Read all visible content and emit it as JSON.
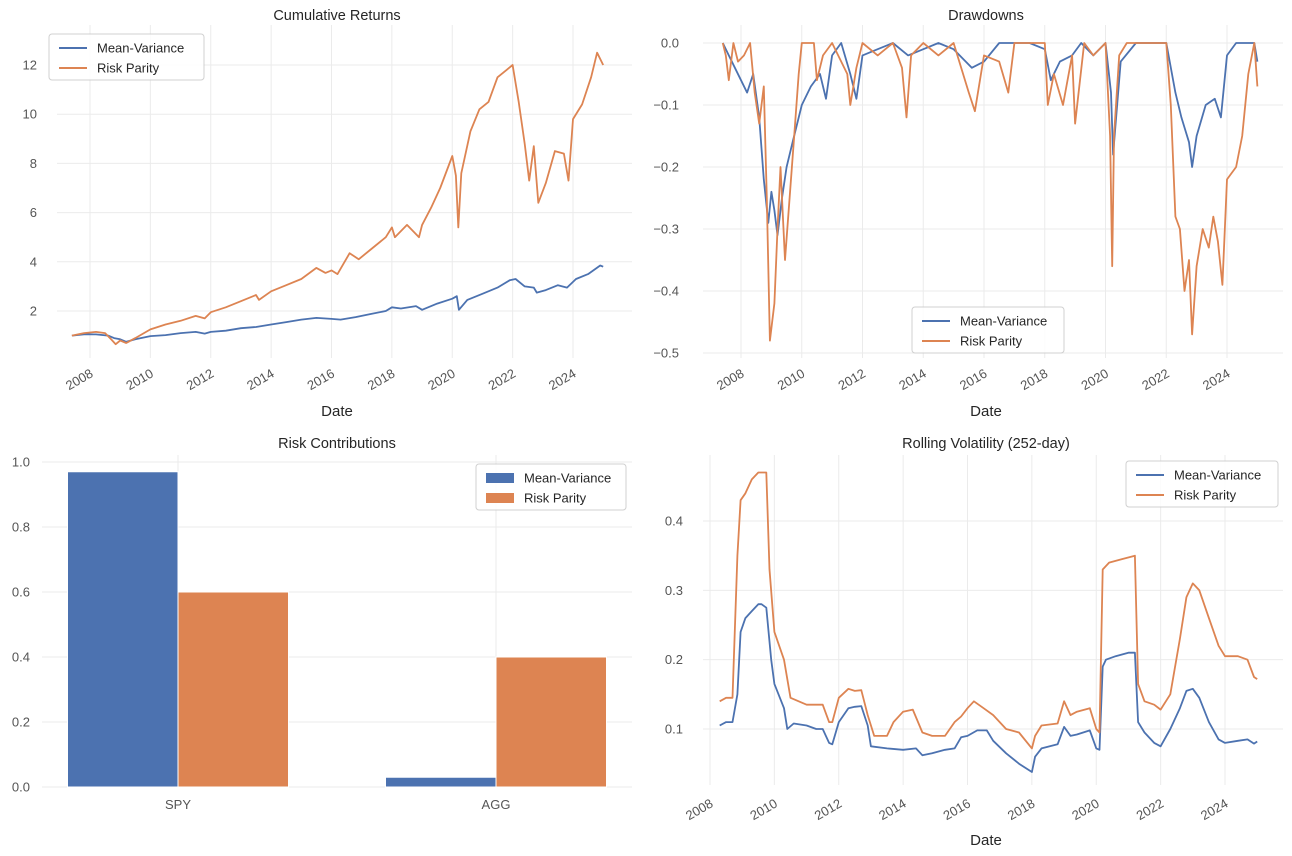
{
  "colors": {
    "mean_variance": "#4c72b0",
    "risk_parity": "#dd8452"
  },
  "chart_data": [
    {
      "id": "cumulative",
      "type": "line",
      "title": "Cumulative Returns",
      "xlabel": "Date",
      "ylabel": "",
      "xticks": [
        "2008",
        "2010",
        "2012",
        "2014",
        "2016",
        "2018",
        "2020",
        "2022",
        "2024"
      ],
      "yticks": [
        "2",
        "4",
        "6",
        "8",
        "10",
        "12"
      ],
      "ylim": [
        0,
        13.5
      ],
      "xlim": [
        2006.9,
        2025.6
      ],
      "grid": true,
      "legend": {
        "position": "top-left",
        "entries": [
          "Mean-Variance",
          "Risk Parity"
        ]
      },
      "series": [
        {
          "name": "Mean-Variance",
          "x": [
            2007.4,
            2007.8,
            2008.2,
            2008.6,
            2008.8,
            2009.0,
            2009.2,
            2009.5,
            2010.0,
            2010.5,
            2011.0,
            2011.5,
            2011.8,
            2012.0,
            2012.5,
            2013.0,
            2013.5,
            2014.0,
            2014.5,
            2015.0,
            2015.5,
            2016.0,
            2016.3,
            2016.8,
            2017.3,
            2017.8,
            2018.0,
            2018.3,
            2018.8,
            2019.0,
            2019.5,
            2020.0,
            2020.15,
            2020.22,
            2020.5,
            2021.0,
            2021.5,
            2021.9,
            2022.1,
            2022.4,
            2022.7,
            2022.8,
            2023.1,
            2023.5,
            2023.8,
            2024.1,
            2024.5,
            2024.9,
            2025.0
          ],
          "y": [
            1.0,
            1.05,
            1.05,
            1.0,
            0.9,
            0.85,
            0.75,
            0.85,
            0.98,
            1.02,
            1.1,
            1.15,
            1.08,
            1.15,
            1.2,
            1.3,
            1.35,
            1.45,
            1.55,
            1.65,
            1.72,
            1.68,
            1.65,
            1.75,
            1.88,
            2.0,
            2.15,
            2.1,
            2.2,
            2.05,
            2.3,
            2.5,
            2.6,
            2.05,
            2.45,
            2.7,
            2.95,
            3.25,
            3.3,
            3.0,
            2.95,
            2.75,
            2.85,
            3.05,
            2.95,
            3.3,
            3.5,
            3.85,
            3.8
          ]
        },
        {
          "name": "Risk Parity",
          "x": [
            2007.4,
            2007.8,
            2008.2,
            2008.5,
            2008.7,
            2008.85,
            2009.0,
            2009.2,
            2009.5,
            2010.0,
            2010.5,
            2011.0,
            2011.5,
            2011.8,
            2012.0,
            2012.5,
            2013.0,
            2013.5,
            2013.6,
            2014.0,
            2014.5,
            2015.0,
            2015.5,
            2015.8,
            2016.0,
            2016.2,
            2016.6,
            2016.9,
            2017.3,
            2017.8,
            2018.0,
            2018.1,
            2018.5,
            2018.9,
            2019.0,
            2019.3,
            2019.6,
            2020.0,
            2020.12,
            2020.2,
            2020.3,
            2020.6,
            2020.9,
            2021.2,
            2021.5,
            2021.8,
            2022.0,
            2022.2,
            2022.4,
            2022.55,
            2022.7,
            2022.85,
            2023.1,
            2023.4,
            2023.7,
            2023.85,
            2024.0,
            2024.3,
            2024.6,
            2024.8,
            2025.0
          ],
          "y": [
            1.0,
            1.1,
            1.15,
            1.1,
            0.85,
            0.65,
            0.8,
            0.7,
            0.9,
            1.25,
            1.45,
            1.6,
            1.8,
            1.7,
            1.95,
            2.15,
            2.4,
            2.65,
            2.45,
            2.8,
            3.05,
            3.3,
            3.75,
            3.55,
            3.65,
            3.5,
            4.35,
            4.1,
            4.5,
            5.0,
            5.4,
            5.0,
            5.5,
            5.0,
            5.5,
            6.2,
            7.0,
            8.3,
            7.5,
            5.4,
            7.6,
            9.3,
            10.2,
            10.5,
            11.5,
            11.8,
            12.0,
            10.5,
            8.8,
            7.3,
            8.7,
            6.4,
            7.2,
            8.5,
            8.4,
            7.3,
            9.8,
            10.4,
            11.5,
            12.5,
            12.0
          ]
        }
      ]
    },
    {
      "id": "drawdowns",
      "type": "line",
      "title": "Drawdowns",
      "xlabel": "Date",
      "ylabel": "",
      "xticks": [
        "2008",
        "2010",
        "2012",
        "2014",
        "2016",
        "2018",
        "2020",
        "2022",
        "2024"
      ],
      "yticks": [
        "0.0",
        "−0.1",
        "−0.2",
        "−0.3",
        "−0.4",
        "−0.5"
      ],
      "ylim": [
        -0.52,
        0.02
      ],
      "xlim": [
        2006.9,
        2025.6
      ],
      "grid": true,
      "legend": {
        "position": "bottom-center",
        "entries": [
          "Mean-Variance",
          "Risk Parity"
        ]
      },
      "series": [
        {
          "name": "Mean-Variance",
          "x": [
            2007.4,
            2007.6,
            2007.8,
            2008.0,
            2008.2,
            2008.4,
            2008.6,
            2008.75,
            2008.9,
            2009.0,
            2009.1,
            2009.2,
            2009.35,
            2009.5,
            2009.7,
            2010.0,
            2010.3,
            2010.6,
            2010.8,
            2011.0,
            2011.3,
            2011.6,
            2011.8,
            2012.0,
            2012.5,
            2013.0,
            2013.5,
            2014.0,
            2014.5,
            2015.0,
            2015.6,
            2016.0,
            2016.5,
            2017.0,
            2017.5,
            2018.0,
            2018.2,
            2018.5,
            2018.9,
            2019.2,
            2019.6,
            2020.0,
            2020.18,
            2020.25,
            2020.5,
            2021.0,
            2021.5,
            2022.0,
            2022.3,
            2022.5,
            2022.75,
            2022.85,
            2023.0,
            2023.3,
            2023.6,
            2023.8,
            2024.0,
            2024.3,
            2024.6,
            2024.9,
            2025.0
          ],
          "y": [
            0.0,
            -0.02,
            -0.04,
            -0.06,
            -0.08,
            -0.05,
            -0.12,
            -0.22,
            -0.29,
            -0.24,
            -0.27,
            -0.31,
            -0.25,
            -0.2,
            -0.16,
            -0.1,
            -0.07,
            -0.05,
            -0.09,
            -0.02,
            0.0,
            -0.05,
            -0.09,
            -0.02,
            -0.01,
            0.0,
            -0.02,
            -0.01,
            0.0,
            -0.01,
            -0.04,
            -0.03,
            0.0,
            0.0,
            0.0,
            -0.01,
            -0.06,
            -0.03,
            -0.02,
            0.0,
            -0.02,
            0.0,
            -0.08,
            -0.18,
            -0.03,
            0.0,
            0.0,
            0.0,
            -0.08,
            -0.12,
            -0.16,
            -0.2,
            -0.15,
            -0.1,
            -0.09,
            -0.12,
            -0.02,
            0.0,
            0.0,
            0.0,
            -0.03
          ]
        },
        {
          "name": "Risk Parity",
          "x": [
            2007.4,
            2007.5,
            2007.6,
            2007.75,
            2007.9,
            2008.1,
            2008.3,
            2008.45,
            2008.6,
            2008.75,
            2008.85,
            2008.95,
            2009.1,
            2009.2,
            2009.3,
            2009.45,
            2009.6,
            2009.75,
            2009.9,
            2010.0,
            2010.4,
            2010.5,
            2010.7,
            2011.0,
            2011.5,
            2011.6,
            2011.8,
            2012.0,
            2012.5,
            2013.0,
            2013.3,
            2013.45,
            2013.6,
            2014.0,
            2014.5,
            2015.0,
            2015.5,
            2015.7,
            2016.0,
            2016.5,
            2016.8,
            2017.0,
            2017.5,
            2018.0,
            2018.1,
            2018.3,
            2018.6,
            2018.9,
            2019.0,
            2019.3,
            2019.6,
            2020.0,
            2020.15,
            2020.22,
            2020.28,
            2020.45,
            2020.7,
            2021.0,
            2021.5,
            2022.0,
            2022.15,
            2022.3,
            2022.45,
            2022.6,
            2022.75,
            2022.85,
            2023.0,
            2023.2,
            2023.4,
            2023.55,
            2023.7,
            2023.85,
            2024.0,
            2024.3,
            2024.5,
            2024.7,
            2024.9,
            2025.0
          ],
          "y": [
            0.0,
            -0.02,
            -0.06,
            0.0,
            -0.03,
            -0.02,
            0.0,
            -0.08,
            -0.13,
            -0.07,
            -0.25,
            -0.48,
            -0.42,
            -0.3,
            -0.2,
            -0.35,
            -0.25,
            -0.15,
            -0.05,
            0.0,
            0.0,
            -0.06,
            -0.02,
            0.0,
            -0.05,
            -0.1,
            -0.04,
            0.0,
            -0.02,
            0.0,
            -0.04,
            -0.12,
            -0.02,
            0.0,
            -0.02,
            0.0,
            -0.08,
            -0.11,
            -0.02,
            -0.03,
            -0.08,
            0.0,
            0.0,
            0.0,
            -0.1,
            -0.05,
            -0.1,
            -0.02,
            -0.13,
            0.0,
            -0.02,
            0.0,
            -0.15,
            -0.36,
            -0.15,
            -0.02,
            0.0,
            0.0,
            0.0,
            0.0,
            -0.1,
            -0.28,
            -0.3,
            -0.4,
            -0.35,
            -0.47,
            -0.36,
            -0.3,
            -0.33,
            -0.28,
            -0.32,
            -0.39,
            -0.22,
            -0.2,
            -0.15,
            -0.05,
            0.0,
            -0.07
          ]
        }
      ]
    },
    {
      "id": "risk_contributions",
      "type": "bar",
      "title": "Risk Contributions",
      "xlabel": "",
      "ylabel": "",
      "categories": [
        "SPY",
        "AGG"
      ],
      "yticks": [
        "0.0",
        "0.2",
        "0.4",
        "0.6",
        "0.8",
        "1.0"
      ],
      "ylim": [
        0,
        1.0
      ],
      "grid": true,
      "legend": {
        "position": "top-right",
        "entries": [
          "Mean-Variance",
          "Risk Parity"
        ]
      },
      "series": [
        {
          "name": "Mean-Variance",
          "values": [
            0.97,
            0.03
          ]
        },
        {
          "name": "Risk Parity",
          "values": [
            0.6,
            0.4
          ]
        }
      ]
    },
    {
      "id": "rolling_volatility",
      "type": "line",
      "title": "Rolling Volatility (252-day)",
      "xlabel": "Date",
      "ylabel": "",
      "xticks": [
        "2008",
        "2010",
        "2012",
        "2014",
        "2016",
        "2018",
        "2020",
        "2022",
        "2024"
      ],
      "yticks": [
        "0.1",
        "0.2",
        "0.3",
        "0.4"
      ],
      "ylim": [
        0.02,
        0.495
      ],
      "xlim": [
        2007.15,
        2025.65
      ],
      "grid": true,
      "legend": {
        "position": "top-right",
        "entries": [
          "Mean-Variance",
          "Risk Parity"
        ]
      },
      "series": [
        {
          "name": "Mean-Variance",
          "x": [
            2008.3,
            2008.5,
            2008.7,
            2008.85,
            2008.95,
            2009.1,
            2009.3,
            2009.5,
            2009.6,
            2009.75,
            2009.9,
            2010.0,
            2010.3,
            2010.4,
            2010.6,
            2011.0,
            2011.3,
            2011.5,
            2011.7,
            2011.8,
            2012.0,
            2012.3,
            2012.5,
            2012.7,
            2012.9,
            2013.0,
            2013.5,
            2014.0,
            2014.4,
            2014.6,
            2014.9,
            2015.3,
            2015.6,
            2015.8,
            2016.0,
            2016.3,
            2016.6,
            2016.8,
            2017.2,
            2017.6,
            2018.0,
            2018.1,
            2018.3,
            2018.8,
            2019.0,
            2019.2,
            2019.4,
            2019.8,
            2020.0,
            2020.1,
            2020.2,
            2020.3,
            2020.6,
            2021.0,
            2021.2,
            2021.3,
            2021.5,
            2021.8,
            2022.0,
            2022.3,
            2022.6,
            2022.8,
            2023.0,
            2023.2,
            2023.5,
            2023.8,
            2024.0,
            2024.4,
            2024.7,
            2024.9,
            2025.0
          ],
          "y": [
            0.105,
            0.11,
            0.11,
            0.15,
            0.24,
            0.26,
            0.27,
            0.28,
            0.28,
            0.275,
            0.2,
            0.165,
            0.13,
            0.1,
            0.108,
            0.105,
            0.1,
            0.1,
            0.08,
            0.078,
            0.11,
            0.13,
            0.132,
            0.133,
            0.105,
            0.075,
            0.072,
            0.07,
            0.072,
            0.062,
            0.065,
            0.07,
            0.072,
            0.088,
            0.09,
            0.098,
            0.098,
            0.083,
            0.065,
            0.05,
            0.038,
            0.06,
            0.072,
            0.078,
            0.103,
            0.09,
            0.092,
            0.098,
            0.072,
            0.07,
            0.19,
            0.2,
            0.205,
            0.21,
            0.21,
            0.11,
            0.095,
            0.08,
            0.075,
            0.1,
            0.13,
            0.155,
            0.158,
            0.145,
            0.11,
            0.085,
            0.08,
            0.083,
            0.085,
            0.079,
            0.082
          ]
        },
        {
          "name": "Risk Parity",
          "x": [
            2008.3,
            2008.5,
            2008.7,
            2008.85,
            2008.95,
            2009.1,
            2009.3,
            2009.5,
            2009.6,
            2009.75,
            2009.85,
            2010.0,
            2010.3,
            2010.5,
            2011.0,
            2011.3,
            2011.5,
            2011.7,
            2011.8,
            2012.0,
            2012.3,
            2012.5,
            2012.7,
            2012.9,
            2013.1,
            2013.5,
            2013.7,
            2014.0,
            2014.3,
            2014.6,
            2014.9,
            2015.3,
            2015.6,
            2015.8,
            2016.0,
            2016.2,
            2016.5,
            2016.8,
            2017.2,
            2017.6,
            2018.0,
            2018.1,
            2018.3,
            2018.8,
            2019.0,
            2019.2,
            2019.4,
            2019.8,
            2020.0,
            2020.1,
            2020.2,
            2020.4,
            2020.8,
            2021.2,
            2021.3,
            2021.5,
            2021.8,
            2022.0,
            2022.3,
            2022.6,
            2022.8,
            2023.0,
            2023.2,
            2023.5,
            2023.8,
            2024.0,
            2024.4,
            2024.7,
            2024.9,
            2025.0
          ],
          "y": [
            0.14,
            0.145,
            0.145,
            0.35,
            0.43,
            0.44,
            0.46,
            0.47,
            0.47,
            0.47,
            0.33,
            0.24,
            0.2,
            0.145,
            0.135,
            0.135,
            0.135,
            0.11,
            0.11,
            0.145,
            0.158,
            0.155,
            0.156,
            0.12,
            0.09,
            0.09,
            0.11,
            0.125,
            0.128,
            0.095,
            0.09,
            0.09,
            0.11,
            0.118,
            0.13,
            0.14,
            0.13,
            0.12,
            0.1,
            0.095,
            0.072,
            0.09,
            0.105,
            0.108,
            0.14,
            0.12,
            0.125,
            0.13,
            0.1,
            0.095,
            0.33,
            0.34,
            0.345,
            0.35,
            0.165,
            0.14,
            0.135,
            0.128,
            0.15,
            0.23,
            0.29,
            0.31,
            0.3,
            0.26,
            0.22,
            0.205,
            0.205,
            0.2,
            0.175,
            0.172
          ]
        }
      ]
    }
  ]
}
